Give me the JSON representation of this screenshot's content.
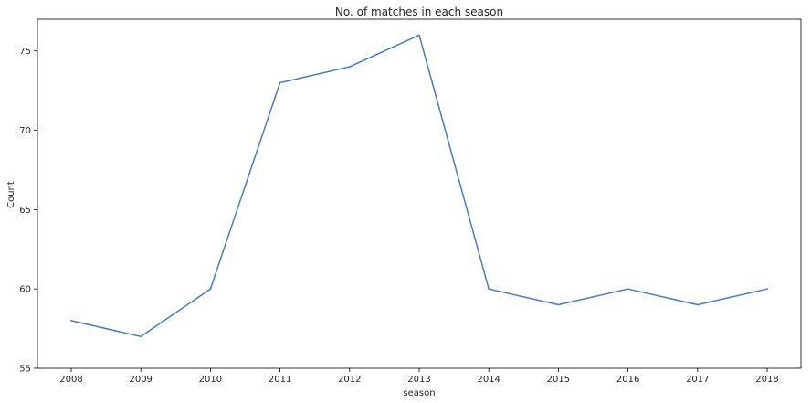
{
  "chart_data": {
    "type": "line",
    "title": "No. of matches in each season",
    "xlabel": "season",
    "ylabel": "Count",
    "categories": [
      "2008",
      "2009",
      "2010",
      "2011",
      "2012",
      "2013",
      "2014",
      "2015",
      "2016",
      "2017",
      "2018"
    ],
    "series": [
      {
        "values": [
          58,
          57,
          60,
          73,
          74,
          76,
          60,
          59,
          60,
          59,
          60
        ],
        "color": "#4878cf"
      }
    ],
    "ylim": [
      55,
      77
    ],
    "yticks": [
      55,
      60,
      65,
      70,
      75
    ],
    "grid": false,
    "legend": false
  }
}
